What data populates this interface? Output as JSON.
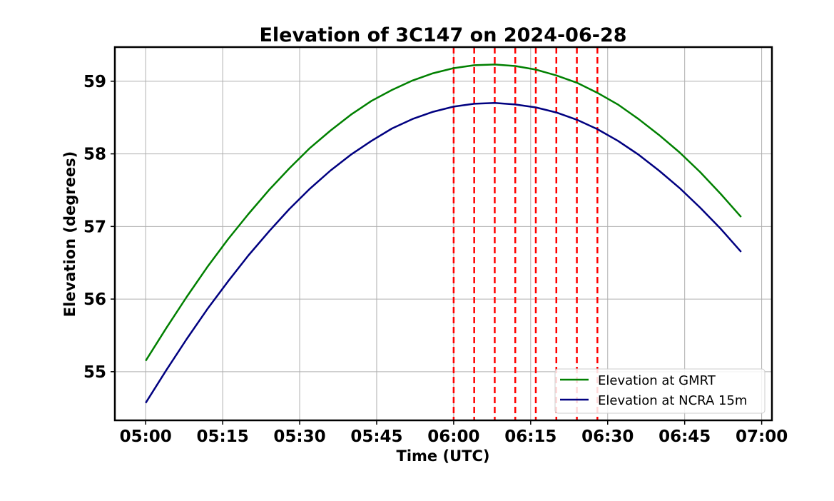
{
  "chart_data": {
    "type": "line",
    "title": "Elevation of 3C147 on 2024-06-28",
    "xlabel": "Time (UTC)",
    "ylabel": "Elevation (degrees)",
    "x_ticks": [
      "05:00",
      "05:15",
      "05:30",
      "05:45",
      "06:00",
      "06:15",
      "06:30",
      "06:45",
      "07:00"
    ],
    "y_ticks": [
      "55",
      "56",
      "57",
      "58",
      "59"
    ],
    "xlim": [
      "04:54",
      "07:02"
    ],
    "ylim": [
      54.33,
      59.47
    ],
    "grid": true,
    "legend_position": "lower-right",
    "x": [
      "05:00",
      "05:04",
      "05:08",
      "05:12",
      "05:16",
      "05:20",
      "05:24",
      "05:28",
      "05:32",
      "05:36",
      "05:40",
      "05:44",
      "05:48",
      "05:52",
      "05:56",
      "06:00",
      "06:04",
      "06:08",
      "06:12",
      "06:16",
      "06:20",
      "06:24",
      "06:28",
      "06:32",
      "06:36",
      "06:40",
      "06:44",
      "06:48",
      "06:52",
      "06:56"
    ],
    "series": [
      {
        "name": "Elevation at GMRT",
        "color": "#008000",
        "values": [
          55.15,
          55.6,
          56.03,
          56.44,
          56.82,
          57.17,
          57.5,
          57.8,
          58.08,
          58.32,
          58.54,
          58.73,
          58.88,
          59.01,
          59.11,
          59.18,
          59.22,
          59.23,
          59.21,
          59.16,
          59.08,
          58.98,
          58.84,
          58.68,
          58.48,
          58.26,
          58.02,
          57.75,
          57.45,
          57.13
        ]
      },
      {
        "name": "Elevation at NCRA 15m",
        "color": "#000080",
        "values": [
          54.57,
          55.02,
          55.45,
          55.86,
          56.24,
          56.6,
          56.93,
          57.24,
          57.52,
          57.77,
          57.99,
          58.18,
          58.35,
          58.48,
          58.58,
          58.65,
          58.69,
          58.7,
          58.68,
          58.64,
          58.57,
          58.47,
          58.34,
          58.18,
          57.99,
          57.77,
          57.53,
          57.26,
          56.97,
          56.65
        ]
      }
    ],
    "vlines": {
      "color": "#ff0000",
      "style": "dashed",
      "x": [
        "06:00",
        "06:04",
        "06:08",
        "06:12",
        "06:16",
        "06:20",
        "06:24",
        "06:28"
      ]
    }
  }
}
